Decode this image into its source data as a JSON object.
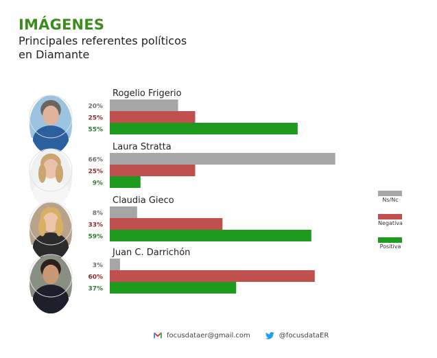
{
  "header": {
    "title": "IMÁGENES",
    "subtitle": "Principales referentes políticos en Diamante"
  },
  "colors": {
    "title": "#3d8b1f",
    "ns_nc": "#a6a6a6",
    "negativa": "#c0504d",
    "positiva": "#1e9a1e",
    "ns_nc_label": "#6f6f6f",
    "negativa_label": "#8b2a2a",
    "positiva_label": "#2e7d32"
  },
  "chart_data": {
    "type": "bar",
    "orientation": "horizontal",
    "categories": [
      "Rogelio Frigerio",
      "Laura Stratta",
      "Claudia Gieco",
      "Juan C. Darrichón"
    ],
    "series": [
      {
        "name": "Ns/Nc",
        "values": [
          20,
          66,
          8,
          3
        ]
      },
      {
        "name": "Negativa",
        "values": [
          25,
          25,
          33,
          60
        ]
      },
      {
        "name": "Positiva",
        "values": [
          55,
          9,
          59,
          37
        ]
      }
    ],
    "value_labels": [
      [
        "20%",
        "25%",
        "55%"
      ],
      [
        "66%",
        "25%",
        "9%"
      ],
      [
        "8%",
        "33%",
        "59%"
      ],
      [
        "3%",
        "60%",
        "37%"
      ]
    ],
    "xlim": [
      0,
      70
    ],
    "grid": false,
    "legend_position": "right",
    "legend": [
      "Ns/Nc",
      "Negativa",
      "Positiva"
    ],
    "photos": [
      "man-in-blue-shirt",
      "woman-blonde",
      "woman-curly-blonde",
      "man-in-suit"
    ]
  },
  "footer": {
    "email": "focusdataer@gmail.com",
    "twitter": "@focusdataER",
    "email_icon": "gmail-icon",
    "twitter_icon": "twitter-icon"
  }
}
